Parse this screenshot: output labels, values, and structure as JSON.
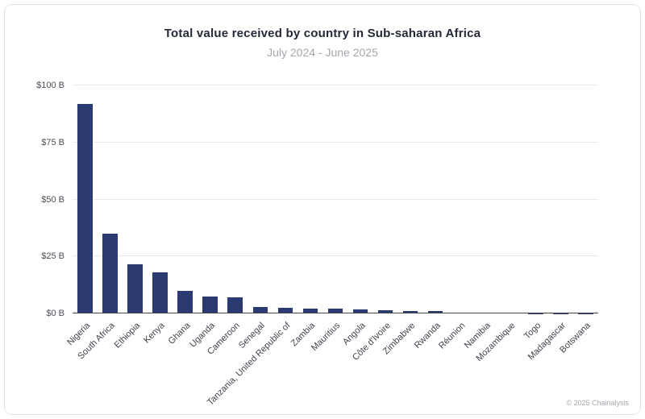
{
  "page": {
    "background": "#ffffff",
    "border_color": "#e2e2e2"
  },
  "header": {
    "title": "Total value received by country in Sub-saharan Africa",
    "subtitle": "July 2024 - June 2025"
  },
  "footer": {
    "copyright": "© 2025 Chainalysis"
  },
  "chart_data": {
    "type": "bar",
    "title": "Total value received by country in Sub-saharan Africa",
    "subtitle": "July 2024 - June 2025",
    "xlabel": "",
    "ylabel": "",
    "unit": "USD billions received",
    "ylim": [
      0,
      100
    ],
    "ytick_values": [
      0,
      25,
      50,
      75,
      100
    ],
    "ytick_labels": [
      "$0 B",
      "$25 B",
      "$50 B",
      "$75 B",
      "$100 B"
    ],
    "grid": true,
    "legend": false,
    "bar_color": "#2c3a72",
    "grid_color": "#e9e9e9",
    "axis_line_color": "#444444",
    "categories": [
      "Nigeria",
      "South Africa",
      "Ethiopia",
      "Kenya",
      "Ghana",
      "Uganda",
      "Cameroon",
      "Senegal",
      "Tanzania, United Republic of",
      "Zambia",
      "Mauritius",
      "Angola",
      "Côte d'Ivoire",
      "Zimbabwe",
      "Rwanda",
      "Réunion",
      "Namibia",
      "Mozambique",
      "Togo",
      "Madagascar",
      "Botswana"
    ],
    "values": [
      92,
      35,
      21.5,
      18,
      10,
      7.6,
      6.9,
      2.8,
      2.5,
      2.2,
      2.0,
      1.8,
      1.4,
      1.1,
      0.9,
      0.3,
      0.25,
      0.2,
      0.12,
      0.08,
      0.05
    ]
  }
}
